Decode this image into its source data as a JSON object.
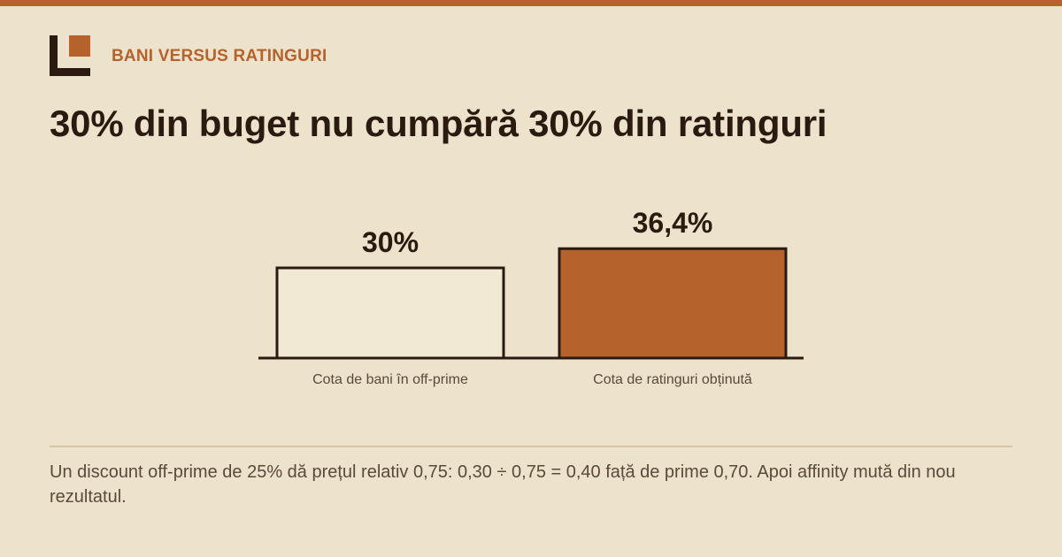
{
  "header": {
    "kicker": "BANI VERSUS RATINGURI",
    "title": "30% din buget nu cumpără 30% din ratinguri"
  },
  "colors": {
    "accent": "#b5622d",
    "bar_light": "#f2e9d5",
    "ink": "#2a1a0f",
    "background": "#ede2cb"
  },
  "chart_data": {
    "type": "bar",
    "categories": [
      "Cota de bani în off-prime",
      "Cota de ratinguri obținută"
    ],
    "values": [
      30,
      36.4
    ],
    "value_labels": [
      "30%",
      "36,4%"
    ],
    "title": "",
    "xlabel": "",
    "ylabel": ""
  },
  "footer": {
    "note": "Un discount off-prime de 25% dă prețul relativ 0,75: 0,30 ÷ 0,75 = 0,40 față de prime 0,70. Apoi affinity mută din nou rezultatul."
  }
}
